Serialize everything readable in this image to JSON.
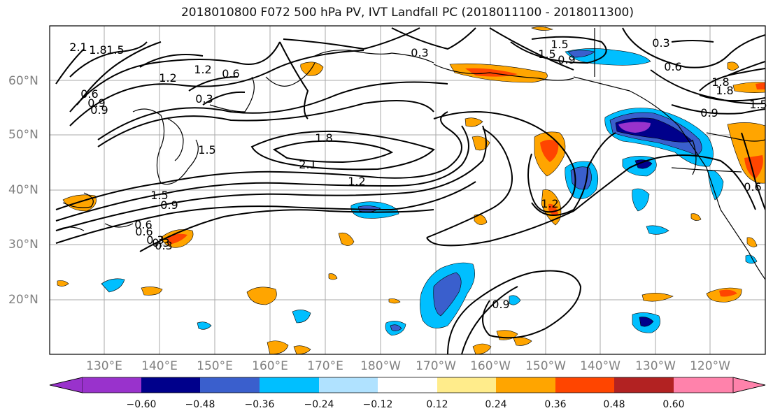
{
  "title": "2018010800 F072 500 hPa PV, IVT Landfall PC (2018011100 - 2018011300)",
  "lat_labels": [
    "60°N",
    "50°N",
    "40°N",
    "30°N",
    "20°N"
  ],
  "lon_labels": [
    "130°E",
    "140°E",
    "150°E",
    "160°E",
    "170°E",
    "180°W",
    "170°W",
    "160°W",
    "150°W",
    "140°W",
    "130°W",
    "120°W"
  ],
  "contour_labels": [
    "2.1",
    "1.8",
    "1.5",
    "1.2",
    "0.6",
    "0.9",
    "0.3",
    "0.6",
    "0.9",
    "0.3",
    "1.5",
    "1.2",
    "1.5",
    "2.1",
    "1.8",
    "1.2",
    "0.3",
    "0.6",
    "0.9",
    "0.3",
    "0.6",
    "1.5",
    "1.8",
    "1.5",
    "0.9",
    "0.6",
    "0.3",
    "1.5",
    "1.8",
    "1.2",
    "0.9",
    "0.6",
    "0.9",
    "0.3"
  ],
  "colorbar": {
    "ticks": [
      "−0.60",
      "−0.48",
      "−0.36",
      "−0.24",
      "−0.12",
      "0.12",
      "0.24",
      "0.36",
      "0.48",
      "0.60"
    ],
    "colors": [
      "#9932cc",
      "#00008b",
      "#3a5fcd",
      "#00bfff",
      "#b0e2ff",
      "#ffffff",
      "#ffec8b",
      "#ffa500",
      "#ff4500",
      "#b22222",
      "#ff82ab"
    ]
  }
}
